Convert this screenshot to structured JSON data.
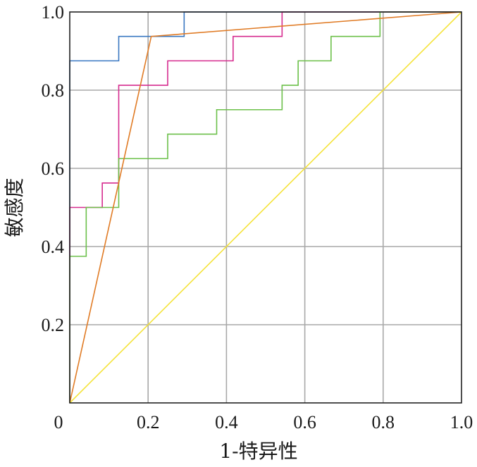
{
  "chart_data": {
    "type": "line",
    "title": "",
    "xlabel": "1-特异性",
    "ylabel": "敏感度",
    "xlim": [
      0,
      1
    ],
    "ylim": [
      0,
      1
    ],
    "grid": true,
    "legend": "none",
    "x_ticks": [
      {
        "value": 0,
        "label": "0"
      },
      {
        "value": 0.2,
        "label": "0.2"
      },
      {
        "value": 0.4,
        "label": "0.4"
      },
      {
        "value": 0.6,
        "label": "0.6"
      },
      {
        "value": 0.8,
        "label": "0.8"
      },
      {
        "value": 1,
        "label": "1.0"
      }
    ],
    "y_ticks": [
      {
        "value": 0.2,
        "label": "0.2"
      },
      {
        "value": 0.4,
        "label": "0.4"
      },
      {
        "value": 0.6,
        "label": "0.6"
      },
      {
        "value": 0.8,
        "label": "0.8"
      },
      {
        "value": 1,
        "label": "1.0"
      }
    ],
    "series": [
      {
        "color": "#3a78c2",
        "points": [
          [
            0,
            0
          ],
          [
            0,
            0.875
          ],
          [
            0.125,
            0.875
          ],
          [
            0.125,
            0.9375
          ],
          [
            0.292,
            0.9375
          ],
          [
            0.292,
            1
          ],
          [
            1,
            1
          ]
        ]
      },
      {
        "color": "#d62c8f",
        "points": [
          [
            0,
            0
          ],
          [
            0,
            0.5
          ],
          [
            0.083,
            0.5
          ],
          [
            0.083,
            0.5625
          ],
          [
            0.125,
            0.5625
          ],
          [
            0.125,
            0.8125
          ],
          [
            0.25,
            0.8125
          ],
          [
            0.25,
            0.875
          ],
          [
            0.417,
            0.875
          ],
          [
            0.417,
            0.9375
          ],
          [
            0.542,
            0.9375
          ],
          [
            0.542,
            1
          ],
          [
            1,
            1
          ]
        ]
      },
      {
        "color": "#6cc04a",
        "points": [
          [
            0,
            0
          ],
          [
            0,
            0.375
          ],
          [
            0.042,
            0.375
          ],
          [
            0.042,
            0.5
          ],
          [
            0.125,
            0.5
          ],
          [
            0.125,
            0.625
          ],
          [
            0.25,
            0.625
          ],
          [
            0.25,
            0.6875
          ],
          [
            0.375,
            0.6875
          ],
          [
            0.375,
            0.75
          ],
          [
            0.542,
            0.75
          ],
          [
            0.542,
            0.8125
          ],
          [
            0.583,
            0.8125
          ],
          [
            0.583,
            0.875
          ],
          [
            0.667,
            0.875
          ],
          [
            0.667,
            0.9375
          ],
          [
            0.792,
            0.9375
          ],
          [
            0.792,
            1
          ],
          [
            1,
            1
          ]
        ]
      },
      {
        "color": "#e07b25",
        "points": [
          [
            0,
            0
          ],
          [
            0.208,
            0.9375
          ],
          [
            1,
            1
          ]
        ]
      },
      {
        "color": "#f5e33a",
        "points": [
          [
            0,
            0
          ],
          [
            1,
            1
          ]
        ]
      }
    ]
  }
}
